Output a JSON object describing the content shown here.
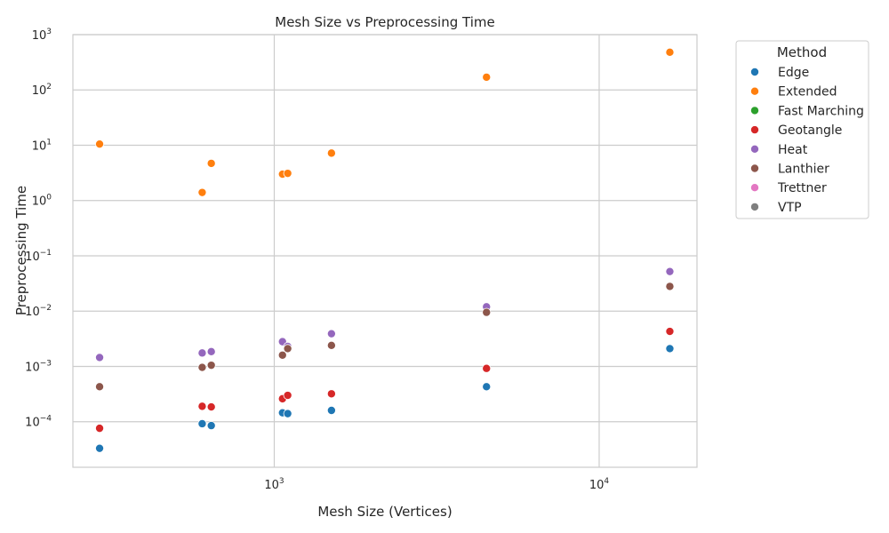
{
  "chart_data": {
    "type": "scatter",
    "title": "Mesh Size vs Preprocessing Time",
    "xlabel": "Mesh Size (Vertices)",
    "ylabel": "Preprocessing Time",
    "xscale": "log",
    "yscale": "log",
    "xlim": [
      240,
      20000
    ],
    "ylim": [
      1.5e-05,
      1000
    ],
    "x_ticks": [
      {
        "value": 1000,
        "base": "10",
        "exp": "3"
      },
      {
        "value": 10000,
        "base": "10",
        "exp": "4"
      }
    ],
    "y_ticks": [
      {
        "value": 0.0001,
        "base": "10",
        "exp": "−4"
      },
      {
        "value": 0.001,
        "base": "10",
        "exp": "−3"
      },
      {
        "value": 0.01,
        "base": "10",
        "exp": "−2"
      },
      {
        "value": 0.1,
        "base": "10",
        "exp": "−1"
      },
      {
        "value": 1,
        "base": "10",
        "exp": "0"
      },
      {
        "value": 10,
        "base": "10",
        "exp": "1"
      },
      {
        "value": 100,
        "base": "10",
        "exp": "2"
      },
      {
        "value": 1000,
        "base": "10",
        "exp": "3"
      }
    ],
    "grid": true,
    "legend_title": "Method",
    "legend_position": "outside-right",
    "series": [
      {
        "name": "Edge",
        "color": "#1f77b4",
        "points": [
          [
            290,
            3.3e-05
          ],
          [
            600,
            9.2e-05
          ],
          [
            640,
            8.5e-05
          ],
          [
            1060,
            0.000145
          ],
          [
            1100,
            0.00014
          ],
          [
            1500,
            0.00016
          ],
          [
            4500,
            0.00043
          ],
          [
            16500,
            0.0021
          ]
        ]
      },
      {
        "name": "Extended",
        "color": "#ff7f0e",
        "points": [
          [
            290,
            10.5
          ],
          [
            600,
            1.4
          ],
          [
            640,
            4.7
          ],
          [
            1060,
            3.0
          ],
          [
            1100,
            3.1
          ],
          [
            1500,
            7.2
          ],
          [
            4500,
            170
          ],
          [
            16500,
            480
          ]
        ]
      },
      {
        "name": "Fast Marching",
        "color": "#2ca02c",
        "points": []
      },
      {
        "name": "Geotangle",
        "color": "#d62728",
        "points": [
          [
            290,
            7.6e-05
          ],
          [
            600,
            0.00019
          ],
          [
            640,
            0.000185
          ],
          [
            1060,
            0.00026
          ],
          [
            1100,
            0.0003
          ],
          [
            1500,
            0.00032
          ],
          [
            4500,
            0.00092
          ],
          [
            16500,
            0.0043
          ]
        ]
      },
      {
        "name": "Heat",
        "color": "#9467bd",
        "points": [
          [
            290,
            0.00145
          ],
          [
            600,
            0.00175
          ],
          [
            640,
            0.00185
          ],
          [
            1060,
            0.0028
          ],
          [
            1100,
            0.0023
          ],
          [
            1500,
            0.0039
          ],
          [
            4500,
            0.012
          ],
          [
            16500,
            0.052
          ]
        ]
      },
      {
        "name": "Lanthier",
        "color": "#8c564b",
        "points": [
          [
            290,
            0.00043
          ],
          [
            600,
            0.00096
          ],
          [
            640,
            0.00105
          ],
          [
            1060,
            0.0016
          ],
          [
            1100,
            0.0021
          ],
          [
            1500,
            0.0024
          ],
          [
            4500,
            0.0095
          ],
          [
            16500,
            0.028
          ]
        ]
      },
      {
        "name": "Trettner",
        "color": "#e377c2",
        "points": []
      },
      {
        "name": "VTP",
        "color": "#7f7f7f",
        "points": []
      }
    ]
  }
}
